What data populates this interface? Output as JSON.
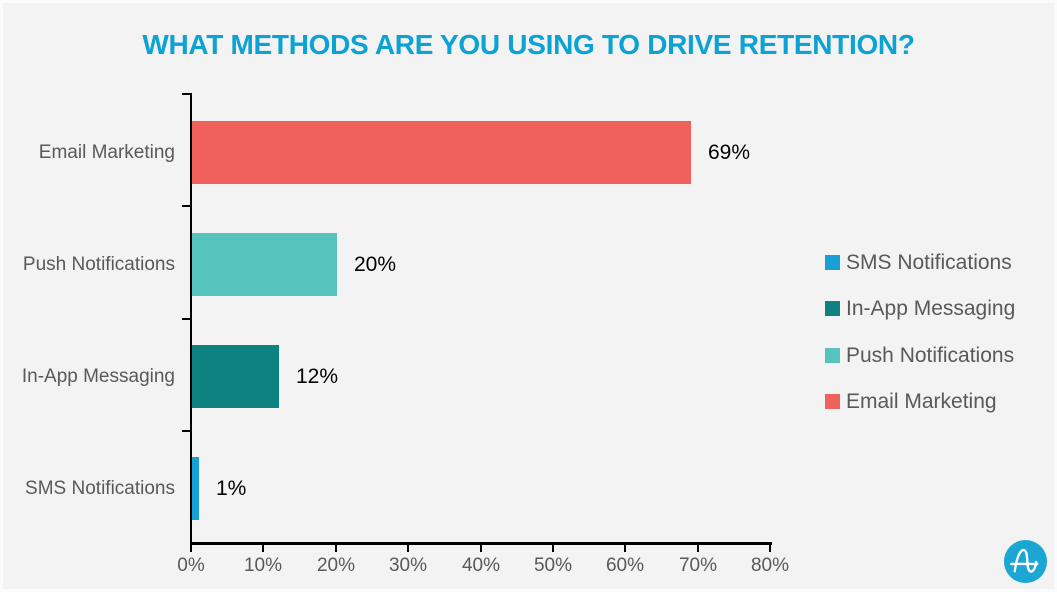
{
  "title": "WHAT METHODS ARE YOU USING TO DRIVE RETENTION?",
  "colors": {
    "background": "#F2F3F2",
    "border": "#FBFBFB",
    "title": "#0CA2D4",
    "axis": "#000000",
    "category_label": "#595959",
    "tick_label": "#595959",
    "value_label": "#000000",
    "legend_label": "#595959",
    "logo_circle": "#1BA6D4"
  },
  "icons": {
    "logo": "appcues-wave-a-logo"
  },
  "chart_data": {
    "type": "bar",
    "orientation": "horizontal",
    "title": "WHAT METHODS ARE YOU USING TO DRIVE RETENTION?",
    "categories": [
      "Email Marketing",
      "Push Notifications",
      "In-App Messaging",
      "SMS Notifications"
    ],
    "values": [
      69,
      20,
      12,
      1
    ],
    "value_labels": [
      "69%",
      "20%",
      "12%",
      "1%"
    ],
    "bar_colors": [
      "#F0615E",
      "#56C3BD",
      "#0E8281",
      "#18A0D5"
    ],
    "xlabel": "",
    "ylabel": "",
    "xlim": [
      0,
      80
    ],
    "x_ticks": [
      "0%",
      "10%",
      "20%",
      "30%",
      "40%",
      "50%",
      "60%",
      "70%",
      "80%"
    ],
    "grid": false,
    "legend_position": "right",
    "legend": [
      {
        "label": "SMS Notifications",
        "color": "#18A0D5"
      },
      {
        "label": "In-App Messaging",
        "color": "#0E8281"
      },
      {
        "label": "Push Notifications",
        "color": "#56C3BD"
      },
      {
        "label": "Email Marketing",
        "color": "#F0615E"
      }
    ]
  }
}
